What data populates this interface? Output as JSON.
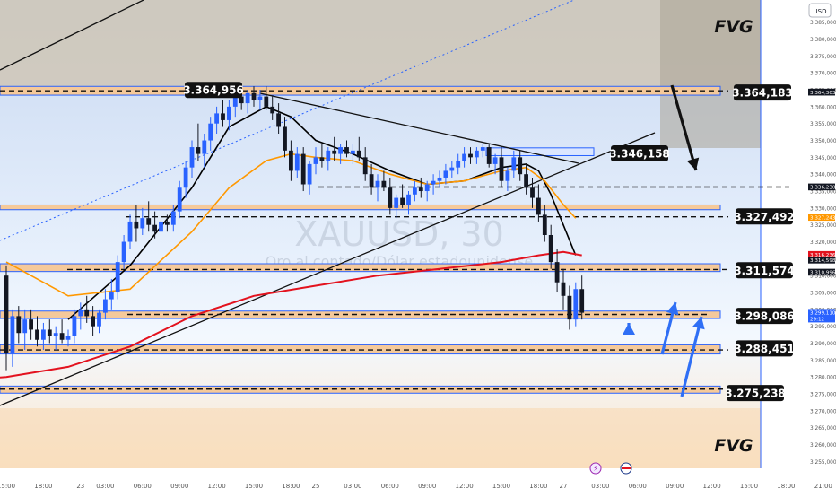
{
  "watermark": {
    "symbol": "XAUUSD, 30",
    "subtitle": "Oro al contado/Dólar estadounidense"
  },
  "currency_button": "USD",
  "annotations": {
    "fvg_top": "FVG",
    "fvg_bottom": "FVG"
  },
  "colors": {
    "candle_up": "#2962ff",
    "candle_down": "#131722",
    "zone_fill": "#f5c99a",
    "zone_border": "#2962ff",
    "ma_fast": "#000000",
    "ma_mid": "#ff9800",
    "ma_slow": "#e3121e",
    "arrow_blue": "#2f6ff5"
  },
  "chart_data": {
    "type": "candlestick",
    "title": "",
    "y_axis": {
      "range": [
        3.2535,
        3.3897
      ],
      "ticks": [
        "3.385,000",
        "3.380,000",
        "3.375,000",
        "3.370,000",
        "3.365,000",
        "3.360,000",
        "3.355,000",
        "3.350,000",
        "3.345,000",
        "3.340,000",
        "3.335,000",
        "3.330,000",
        "3.325,000",
        "3.320,000",
        "3.315,000",
        "3.310,000",
        "3.305,000",
        "3.300,000",
        "3.295,000",
        "3.290,000",
        "3.285,000",
        "3.280,000",
        "3.275,000",
        "3.270,000",
        "3.265,000",
        "3.260,000",
        "3.255,000"
      ],
      "tick_values": [
        3.385,
        3.38,
        3.375,
        3.37,
        3.365,
        3.36,
        3.355,
        3.35,
        3.345,
        3.34,
        3.335,
        3.33,
        3.325,
        3.32,
        3.315,
        3.31,
        3.305,
        3.3,
        3.295,
        3.29,
        3.285,
        3.28,
        3.275,
        3.27,
        3.265,
        3.26,
        3.255
      ]
    },
    "x_axis": {
      "labels": [
        "15:00",
        "18:00",
        "23",
        "03:00",
        "06:00",
        "09:00",
        "12:00",
        "15:00",
        "18:00",
        "25",
        "03:00",
        "06:00",
        "09:00",
        "12:00",
        "15:00",
        "18:00",
        "27",
        "03:00",
        "06:00",
        "09:00",
        "12:00",
        "15:00",
        "18:00",
        "21:00",
        "28",
        "03:00",
        "06:00"
      ],
      "label_index": [
        0,
        6,
        12,
        16,
        22,
        28,
        34,
        40,
        46,
        50,
        56,
        62,
        68,
        74,
        80,
        86,
        90,
        96,
        102,
        108,
        114,
        120,
        126,
        132,
        138,
        144,
        150
      ]
    },
    "ohlc": [
      [
        3.31,
        3.313,
        3.282,
        3.287
      ],
      [
        3.287,
        3.3,
        3.283,
        3.298
      ],
      [
        3.298,
        3.301,
        3.29,
        3.293
      ],
      [
        3.293,
        3.3,
        3.288,
        3.297
      ],
      [
        3.297,
        3.3,
        3.291,
        3.294
      ],
      [
        3.294,
        3.298,
        3.289,
        3.291
      ],
      [
        3.291,
        3.296,
        3.288,
        3.294
      ],
      [
        3.294,
        3.297,
        3.29,
        3.292
      ],
      [
        3.292,
        3.295,
        3.288,
        3.293
      ],
      [
        3.293,
        3.297,
        3.29,
        3.291
      ],
      [
        3.291,
        3.294,
        3.289,
        3.292
      ],
      [
        3.292,
        3.3,
        3.29,
        3.298
      ],
      [
        3.298,
        3.302,
        3.294,
        3.3
      ],
      [
        3.3,
        3.304,
        3.296,
        3.298
      ],
      [
        3.298,
        3.301,
        3.292,
        3.295
      ],
      [
        3.295,
        3.3,
        3.293,
        3.299
      ],
      [
        3.299,
        3.306,
        3.297,
        3.303
      ],
      [
        3.303,
        3.309,
        3.3,
        3.305
      ],
      [
        3.305,
        3.316,
        3.303,
        3.314
      ],
      [
        3.314,
        3.322,
        3.312,
        3.32
      ],
      [
        3.32,
        3.328,
        3.318,
        3.326
      ],
      [
        3.326,
        3.331,
        3.32,
        3.324
      ],
      [
        3.324,
        3.33,
        3.322,
        3.327
      ],
      [
        3.327,
        3.332,
        3.323,
        3.325
      ],
      [
        3.325,
        3.329,
        3.321,
        3.323
      ],
      [
        3.323,
        3.327,
        3.32,
        3.326
      ],
      [
        3.326,
        3.328,
        3.323,
        3.325
      ],
      [
        3.325,
        3.331,
        3.323,
        3.329
      ],
      [
        3.329,
        3.338,
        3.327,
        3.336
      ],
      [
        3.336,
        3.344,
        3.333,
        3.342
      ],
      [
        3.342,
        3.35,
        3.339,
        3.348
      ],
      [
        3.348,
        3.355,
        3.344,
        3.346
      ],
      [
        3.346,
        3.352,
        3.342,
        3.35
      ],
      [
        3.35,
        3.357,
        3.347,
        3.355
      ],
      [
        3.355,
        3.36,
        3.352,
        3.358
      ],
      [
        3.358,
        3.362,
        3.354,
        3.356
      ],
      [
        3.356,
        3.362,
        3.353,
        3.36
      ],
      [
        3.36,
        3.365,
        3.357,
        3.363
      ],
      [
        3.363,
        3.366,
        3.359,
        3.361
      ],
      [
        3.361,
        3.365,
        3.358,
        3.364
      ],
      [
        3.364,
        3.366,
        3.36,
        3.362
      ],
      [
        3.362,
        3.365,
        3.359,
        3.363
      ],
      [
        3.363,
        3.366,
        3.359,
        3.36
      ],
      [
        3.36,
        3.363,
        3.356,
        3.358
      ],
      [
        3.358,
        3.361,
        3.352,
        3.354
      ],
      [
        3.354,
        3.357,
        3.345,
        3.347
      ],
      [
        3.347,
        3.35,
        3.338,
        3.341
      ],
      [
        3.341,
        3.348,
        3.339,
        3.346
      ],
      [
        3.346,
        3.348,
        3.335,
        3.337
      ],
      [
        3.337,
        3.344,
        3.334,
        3.343
      ],
      [
        3.343,
        3.348,
        3.34,
        3.345
      ],
      [
        3.345,
        3.349,
        3.342,
        3.344
      ],
      [
        3.344,
        3.348,
        3.341,
        3.347
      ],
      [
        3.347,
        3.351,
        3.344,
        3.346
      ],
      [
        3.346,
        3.349,
        3.343,
        3.348
      ],
      [
        3.348,
        3.35,
        3.345,
        3.346
      ],
      [
        3.346,
        3.349,
        3.343,
        3.347
      ],
      [
        3.347,
        3.351,
        3.344,
        3.345
      ],
      [
        3.345,
        3.348,
        3.338,
        3.34
      ],
      [
        3.34,
        3.343,
        3.334,
        3.336
      ],
      [
        3.336,
        3.34,
        3.332,
        3.338
      ],
      [
        3.338,
        3.341,
        3.335,
        3.336
      ],
      [
        3.336,
        3.339,
        3.328,
        3.33
      ],
      [
        3.33,
        3.334,
        3.327,
        3.333
      ],
      [
        3.333,
        3.337,
        3.33,
        3.331
      ],
      [
        3.331,
        3.335,
        3.328,
        3.334
      ],
      [
        3.334,
        3.338,
        3.332,
        3.336
      ],
      [
        3.336,
        3.339,
        3.333,
        3.335
      ],
      [
        3.335,
        3.338,
        3.332,
        3.337
      ],
      [
        3.337,
        3.34,
        3.334,
        3.338
      ],
      [
        3.338,
        3.341,
        3.336,
        3.339
      ],
      [
        3.339,
        3.343,
        3.337,
        3.341
      ],
      [
        3.341,
        3.344,
        3.339,
        3.342
      ],
      [
        3.342,
        3.346,
        3.34,
        3.344
      ],
      [
        3.344,
        3.348,
        3.342,
        3.346
      ],
      [
        3.346,
        3.348,
        3.343,
        3.345
      ],
      [
        3.345,
        3.348,
        3.343,
        3.347
      ],
      [
        3.347,
        3.349,
        3.345,
        3.348
      ],
      [
        3.348,
        3.349,
        3.342,
        3.343
      ],
      [
        3.343,
        3.346,
        3.34,
        3.345
      ],
      [
        3.345,
        3.348,
        3.336,
        3.338
      ],
      [
        3.338,
        3.342,
        3.335,
        3.341
      ],
      [
        3.341,
        3.347,
        3.339,
        3.345
      ],
      [
        3.345,
        3.347,
        3.338,
        3.34
      ],
      [
        3.34,
        3.343,
        3.334,
        3.336
      ],
      [
        3.336,
        3.339,
        3.33,
        3.333
      ],
      [
        3.333,
        3.337,
        3.326,
        3.328
      ],
      [
        3.328,
        3.331,
        3.32,
        3.322
      ],
      [
        3.322,
        3.325,
        3.312,
        3.314
      ],
      [
        3.314,
        3.318,
        3.305,
        3.308
      ],
      [
        3.308,
        3.312,
        3.3,
        3.304
      ],
      [
        3.304,
        3.307,
        3.294,
        3.297
      ],
      [
        3.297,
        3.308,
        3.295,
        3.306
      ],
      [
        3.306,
        3.31,
        3.297,
        3.299
      ]
    ],
    "candle_x_start": 0,
    "candle_x_step": 1,
    "moving_averages": [
      {
        "color_key": "ma_fast",
        "points": [
          [
            10,
            3.297
          ],
          [
            20,
            3.313
          ],
          [
            30,
            3.336
          ],
          [
            36,
            3.354
          ],
          [
            42,
            3.36
          ],
          [
            46,
            3.357
          ],
          [
            50,
            3.35
          ],
          [
            56,
            3.346
          ],
          [
            62,
            3.341
          ],
          [
            68,
            3.337
          ],
          [
            74,
            3.338
          ],
          [
            80,
            3.342
          ],
          [
            84,
            3.343
          ],
          [
            86,
            3.341
          ],
          [
            88,
            3.334
          ],
          [
            90,
            3.325
          ],
          [
            92,
            3.316
          ]
        ]
      },
      {
        "color_key": "ma_mid",
        "points": [
          [
            0,
            3.314
          ],
          [
            10,
            3.304
          ],
          [
            20,
            3.306
          ],
          [
            30,
            3.323
          ],
          [
            36,
            3.336
          ],
          [
            42,
            3.344
          ],
          [
            46,
            3.346
          ],
          [
            50,
            3.345
          ],
          [
            56,
            3.344
          ],
          [
            62,
            3.34
          ],
          [
            68,
            3.337
          ],
          [
            74,
            3.338
          ],
          [
            80,
            3.341
          ],
          [
            84,
            3.342
          ],
          [
            87,
            3.338
          ],
          [
            90,
            3.331
          ],
          [
            92,
            3.327
          ]
        ]
      },
      {
        "color_key": "ma_slow",
        "points": [
          [
            -15,
            3.278
          ],
          [
            0,
            3.28
          ],
          [
            10,
            3.283
          ],
          [
            20,
            3.289
          ],
          [
            30,
            3.298
          ],
          [
            40,
            3.304
          ],
          [
            50,
            3.307
          ],
          [
            60,
            3.31
          ],
          [
            70,
            3.312
          ],
          [
            80,
            3.314
          ],
          [
            86,
            3.316
          ],
          [
            90,
            3.317
          ],
          [
            93,
            3.316
          ]
        ]
      }
    ],
    "price_labels": [
      {
        "value": 3.364956,
        "text": "3.364,956"
      },
      {
        "value": 3.364183,
        "text": "3.364,183"
      },
      {
        "value": 3.346158,
        "text": "3.346,158"
      },
      {
        "value": 3.327492,
        "text": "3.327,492"
      },
      {
        "value": 3.311574,
        "text": "3.311,574"
      },
      {
        "value": 3.298086,
        "text": "3.298,086"
      },
      {
        "value": 3.288451,
        "text": "3.288,451"
      },
      {
        "value": 3.275238,
        "text": "3.275,238"
      }
    ],
    "axis_markers": [
      {
        "value": 3.364303,
        "text": "3.364,303",
        "color": "#131722",
        "fg": "#ffffff"
      },
      {
        "value": 3.33623,
        "text": "3.336,230",
        "color": "#131722",
        "fg": "#ffffff"
      },
      {
        "value": 3.327341,
        "text": "3.327,341",
        "color": "#131722",
        "fg": "#ffffff"
      },
      {
        "value": 3.327243,
        "text": "3.327,243",
        "color": "#ff9800",
        "fg": "#ffffff"
      },
      {
        "value": 3.316236,
        "text": "3.316,236",
        "color": "#e3121e",
        "fg": "#ffffff"
      },
      {
        "value": 3.314598,
        "text": "3.314,598",
        "color": "#131722",
        "fg": "#ffffff"
      },
      {
        "value": 3.310996,
        "text": "3.310,996",
        "color": "#131722",
        "fg": "#ffffff"
      },
      {
        "value": 3.29911,
        "text": "3.299,110",
        "color": "#2962ff",
        "fg": "#ffffff",
        "extra": "29:12"
      }
    ],
    "legend": "none",
    "grid": false
  }
}
